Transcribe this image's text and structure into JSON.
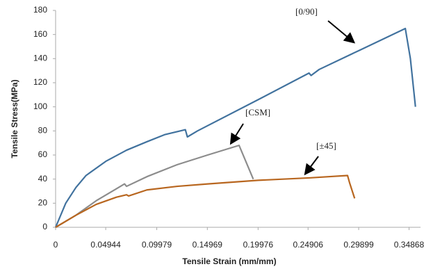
{
  "chart_data": {
    "type": "line",
    "x_label": "Tensile Strain (mm/mm)",
    "y_label": "Tensile Stress(MPa)",
    "xlim": [
      0,
      0.36
    ],
    "ylim": [
      0,
      180
    ],
    "xticks": [
      0,
      0.04944,
      0.09979,
      0.14969,
      0.19976,
      0.24906,
      0.29899,
      0.34868
    ],
    "yticks": [
      0,
      20,
      40,
      60,
      80,
      100,
      120,
      140,
      160,
      180
    ],
    "grid": false,
    "series": [
      {
        "name": "[0/90]",
        "color": "#41729e",
        "x": [
          0,
          0.01,
          0.02,
          0.03,
          0.05,
          0.07,
          0.09,
          0.108,
          0.128,
          0.13,
          0.14,
          0.2,
          0.25,
          0.252,
          0.26,
          0.3,
          0.345,
          0.35,
          0.355
        ],
        "values": [
          0,
          20,
          33,
          43,
          55,
          64,
          71,
          77,
          81,
          75,
          80,
          106,
          128,
          126,
          131,
          147,
          165,
          140,
          100
        ]
      },
      {
        "name": "[CSM]",
        "color": "#8c8c8c",
        "x": [
          0,
          0.02,
          0.04,
          0.06,
          0.068,
          0.07,
          0.09,
          0.12,
          0.15,
          0.181,
          0.195
        ],
        "values": [
          0,
          10,
          22,
          32,
          36,
          34,
          42,
          52,
          60,
          68,
          40
        ]
      },
      {
        "name": "[±45]",
        "color": "#b8661f",
        "x": [
          0,
          0.02,
          0.04,
          0.06,
          0.07,
          0.072,
          0.09,
          0.12,
          0.15,
          0.2,
          0.25,
          0.288,
          0.29,
          0.295
        ],
        "values": [
          0,
          10,
          19,
          25,
          27,
          26,
          31,
          34,
          36,
          39,
          41,
          43,
          37,
          24
        ]
      }
    ]
  }
}
